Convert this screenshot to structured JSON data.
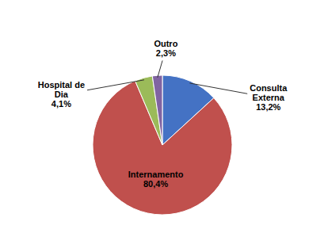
{
  "chart_data": {
    "type": "pie",
    "categories": [
      "Consulta\nExterna",
      "Internamento",
      "Hospital de\nDia",
      "Outro"
    ],
    "values": [
      13.2,
      80.4,
      4.1,
      2.3
    ],
    "value_labels": [
      "13,2%",
      "80,4%",
      "4,1%",
      "2,3%"
    ],
    "colors": [
      "#4472C4",
      "#C0504D",
      "#9BBB59",
      "#8064A2"
    ],
    "data_labels": true
  }
}
